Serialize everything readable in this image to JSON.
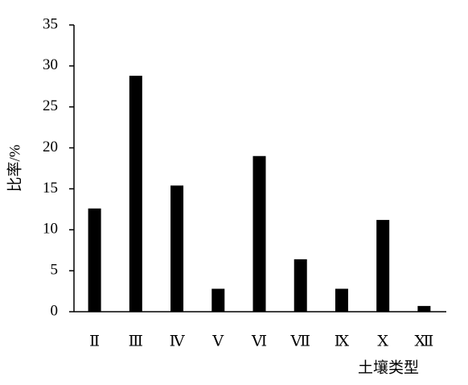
{
  "chart_data": {
    "type": "bar",
    "y_label": "比率/%",
    "x_label": "土壤类型",
    "categories": [
      "Ⅱ",
      "Ⅲ",
      "Ⅳ",
      "Ⅴ",
      "Ⅵ",
      "Ⅶ",
      "Ⅸ",
      "Ⅹ",
      "Ⅻ"
    ],
    "values": [
      12.6,
      28.8,
      15.4,
      2.8,
      19.0,
      6.4,
      2.8,
      11.2,
      0.7
    ],
    "color": "#000000",
    "ylim": [
      0,
      35
    ],
    "yticks": [
      0,
      5,
      10,
      15,
      20,
      25,
      30,
      35
    ],
    "grid": false
  }
}
